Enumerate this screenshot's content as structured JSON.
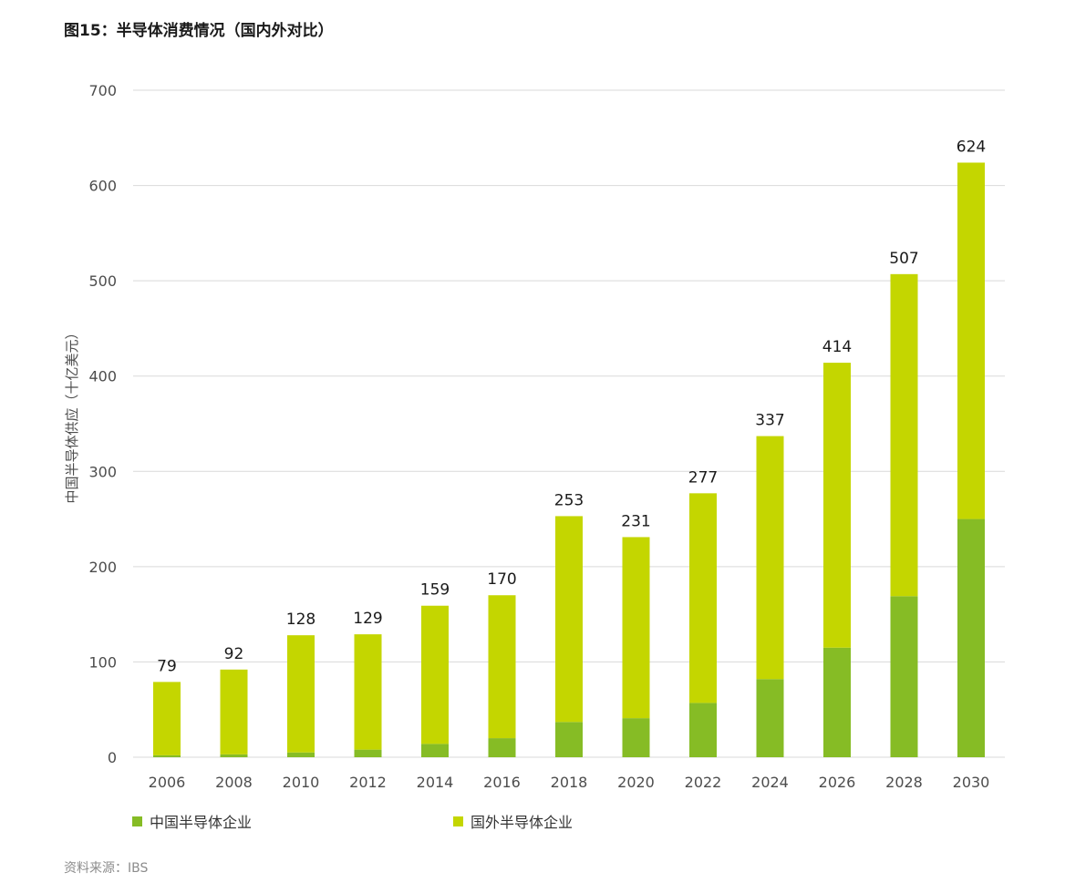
{
  "figure": {
    "title": "图15：半导体消费情况（国内外对比）",
    "source_label": "资料来源：",
    "source_value": "IBS"
  },
  "colors": {
    "domestic": "#86bc25",
    "foreign": "#c4d600",
    "grid": "#d9d9d9",
    "axis_text": "#4d4d4d",
    "total_label": "#1a1a1a"
  },
  "chart_data": {
    "type": "bar",
    "stacked": true,
    "title": "图15：半导体消费情况（国内外对比）",
    "xlabel": "",
    "ylabel": "中国半导体供应（十亿美元）",
    "ylim": [
      0,
      700
    ],
    "yticks": [
      0,
      100,
      200,
      300,
      400,
      500,
      600,
      700
    ],
    "grid": true,
    "legend_position": "bottom-left",
    "categories": [
      "2006",
      "2008",
      "2010",
      "2012",
      "2014",
      "2016",
      "2018",
      "2020",
      "2022",
      "2024",
      "2026",
      "2028",
      "2030"
    ],
    "series": [
      {
        "name": "中国半导体企业",
        "values": [
          2,
          3,
          5,
          8,
          14,
          20,
          37,
          41,
          57,
          82,
          115,
          169,
          250
        ]
      },
      {
        "name": "国外半导体企业",
        "values": [
          77,
          89,
          123,
          121,
          145,
          150,
          216,
          190,
          220,
          255,
          299,
          338,
          374
        ]
      }
    ],
    "totals": [
      79,
      92,
      128,
      129,
      159,
      170,
      253,
      231,
      277,
      337,
      414,
      507,
      624
    ]
  }
}
